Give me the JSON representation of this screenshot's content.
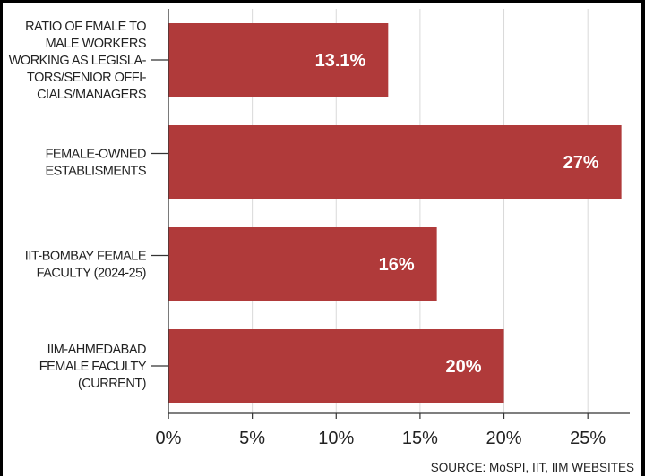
{
  "chart_data": {
    "type": "bar",
    "orientation": "horizontal",
    "categories": [
      [
        "RATIO OF FMALE TO",
        "MALE WORKERS",
        "WORKING AS LEGISLA-",
        "TORS/SENIOR OFFI-",
        "CIALS/MANAGERS"
      ],
      [
        "FEMALE-OWNED",
        "ESTABLISMENTS"
      ],
      [
        "IIT-BOMBAY FEMALE",
        "FACULTY (2024-25)"
      ],
      [
        "IIM-AHMEDABAD",
        "FEMALE FACULTY",
        "(CURRENT)"
      ]
    ],
    "values": [
      13.1,
      27,
      16,
      20
    ],
    "data_labels": [
      "13.1%",
      "27%",
      "16%",
      "20%"
    ],
    "xticks": [
      0,
      5,
      10,
      15,
      20,
      25
    ],
    "xtick_labels": [
      "0%",
      "5%",
      "10%",
      "15%",
      "20%",
      "25%"
    ],
    "xlim": [
      0,
      27.5
    ],
    "grid": "vertical",
    "bar_color": "#b03a3a",
    "title": "",
    "xlabel": "",
    "ylabel": ""
  },
  "source": "SOURCE: MoSPI, IIT, IIM WEBSITES"
}
